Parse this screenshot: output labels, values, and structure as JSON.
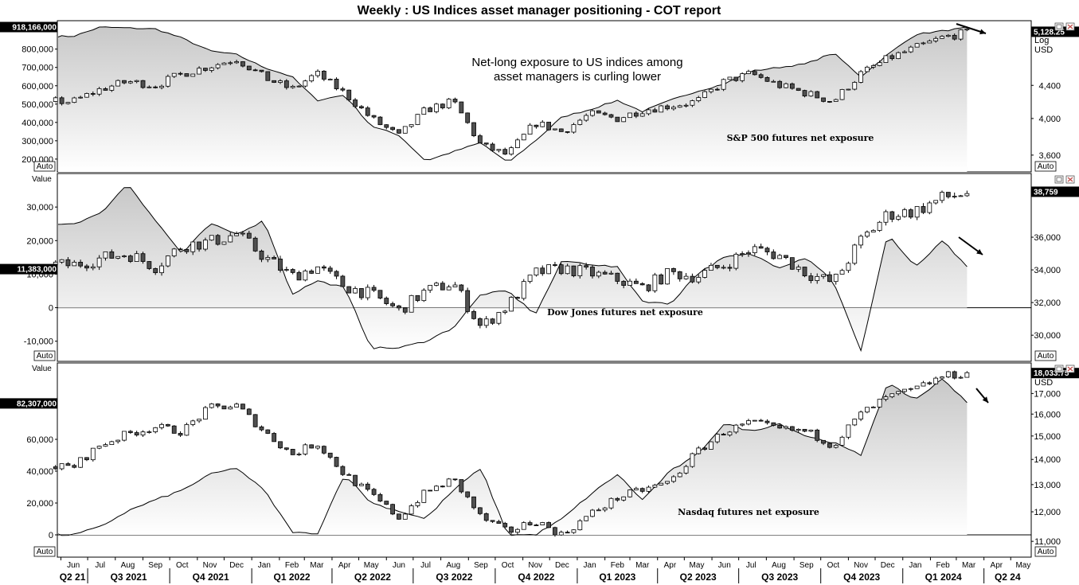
{
  "title": "Weekly : US Indices asset manager positioning - COT report",
  "annotation": "Net-long exposure to US indices among asset managers is curling lower",
  "axis_caption_left": "Value",
  "auto_label": "Auto",
  "time_axis": {
    "months": [
      "Jun",
      "Jul",
      "Aug",
      "Sep",
      "Oct",
      "Nov",
      "Dec",
      "Jan",
      "Feb",
      "Mar",
      "Apr",
      "May",
      "Jun",
      "Jul",
      "Aug",
      "Sep",
      "Oct",
      "Nov",
      "Dec",
      "Jan",
      "Feb",
      "Mar",
      "Apr",
      "May",
      "Jun",
      "Jul",
      "Aug",
      "Sep",
      "Oct",
      "Nov",
      "Dec",
      "Jan",
      "Feb",
      "Mar",
      "Apr",
      "May"
    ],
    "quarters": [
      "Q2 21",
      "Q3 2021",
      "Q4 2021",
      "Q1 2022",
      "Q2 2022",
      "Q3 2022",
      "Q4 2022",
      "Q1 2023",
      "Q2 2023",
      "Q3 2023",
      "Q4 2023",
      "Q1 2024",
      "Q2 24"
    ],
    "start": "2021-05-28",
    "end": "2024-05-24"
  },
  "colors": {
    "area_fill_top": "#c8c8c8",
    "area_fill_bottom": "#ffffff",
    "line": "#000000",
    "candle_up": "#ffffff",
    "candle_down": "#505050",
    "badge": "#000000",
    "close_icon": "#c0504d"
  },
  "chart_data": [
    {
      "type": "line+candlestick",
      "title": "",
      "panel_label": "S&P 500 futures net exposure",
      "left_axis": {
        "label": "Value",
        "ticks": [
          "200,000",
          "300,000",
          "400,000",
          "500,000",
          "600,000",
          "700,000",
          "800,000"
        ],
        "tick_values": [
          200000,
          300000,
          400000,
          500000,
          600000,
          700000,
          800000
        ],
        "last_value": "918,166,000"
      },
      "right_axis": {
        "scale": "log",
        "labels": [
          "Log",
          "USD"
        ],
        "ticks": [
          "3,600",
          "4,000",
          "4,400"
        ],
        "tick_values": [
          3600,
          4000,
          4400
        ],
        "last_value": "5,128.25"
      },
      "series": [
        {
          "role": "net_exposure_line",
          "x": [
            "2021-06",
            "2021-07",
            "2021-08",
            "2021-09",
            "2021-10",
            "2021-11",
            "2021-12",
            "2022-01",
            "2022-02",
            "2022-03",
            "2022-04",
            "2022-05",
            "2022-06",
            "2022-07",
            "2022-08",
            "2022-09",
            "2022-10",
            "2022-11",
            "2022-12",
            "2023-01",
            "2023-02",
            "2023-03",
            "2023-04",
            "2023-05",
            "2023-06",
            "2023-07",
            "2023-08",
            "2023-09",
            "2023-10",
            "2023-11",
            "2023-12",
            "2024-01",
            "2024-02",
            "2024-03"
          ],
          "values": [
            870000,
            920000,
            915000,
            910000,
            860000,
            790000,
            770000,
            700000,
            650000,
            520000,
            550000,
            380000,
            330000,
            190000,
            240000,
            290000,
            180000,
            300000,
            430000,
            470000,
            520000,
            460000,
            520000,
            570000,
            610000,
            680000,
            700000,
            720000,
            780000,
            650000,
            770000,
            880000,
            900000,
            918166
          ]
        },
        {
          "role": "price_close",
          "x": [
            "2021-06",
            "2021-07",
            "2021-08",
            "2021-09",
            "2021-10",
            "2021-11",
            "2021-12",
            "2022-01",
            "2022-02",
            "2022-03",
            "2022-04",
            "2022-05",
            "2022-06",
            "2022-07",
            "2022-08",
            "2022-09",
            "2022-10",
            "2022-11",
            "2022-12",
            "2023-01",
            "2023-02",
            "2023-03",
            "2023-04",
            "2023-05",
            "2023-06",
            "2023-07",
            "2023-08",
            "2023-09",
            "2023-10",
            "2023-11",
            "2023-12",
            "2024-01",
            "2024-02",
            "2024-03"
          ],
          "values": [
            4200,
            4350,
            4450,
            4400,
            4550,
            4650,
            4750,
            4500,
            4350,
            4550,
            4300,
            4000,
            3800,
            4100,
            4200,
            3700,
            3600,
            3950,
            3850,
            4050,
            4000,
            4100,
            4150,
            4200,
            4450,
            4550,
            4400,
            4300,
            4200,
            4550,
            4750,
            4900,
            5050,
            5128
          ]
        }
      ]
    },
    {
      "type": "line+candlestick",
      "title": "",
      "panel_label": "Dow Jones futures net exposure",
      "left_axis": {
        "label": "Value",
        "ticks": [
          "-10,000",
          "0",
          "10,000",
          "20,000",
          "30,000"
        ],
        "tick_values": [
          -10000,
          0,
          10000,
          20000,
          30000
        ],
        "last_value": "11,383,000"
      },
      "right_axis": {
        "scale": "linear",
        "labels": [
          "USD"
        ],
        "ticks": [
          "30,000",
          "32,000",
          "34,000",
          "36,000"
        ],
        "tick_values": [
          30000,
          32000,
          34000,
          36000
        ],
        "last_value": "38,759"
      },
      "series": [
        {
          "role": "net_exposure_line",
          "x": [
            "2021-06",
            "2021-07",
            "2021-08",
            "2021-09",
            "2021-10",
            "2021-11",
            "2021-12",
            "2022-01",
            "2022-02",
            "2022-03",
            "2022-04",
            "2022-05",
            "2022-06",
            "2022-07",
            "2022-08",
            "2022-09",
            "2022-10",
            "2022-11",
            "2022-12",
            "2023-01",
            "2023-02",
            "2023-03",
            "2023-04",
            "2023-05",
            "2023-06",
            "2023-07",
            "2023-08",
            "2023-09",
            "2023-10",
            "2023-11",
            "2023-12",
            "2024-01",
            "2024-02",
            "2024-03"
          ],
          "values": [
            25000,
            28000,
            37000,
            26000,
            16000,
            25000,
            22000,
            26000,
            4000,
            8000,
            6000,
            -12000,
            -12000,
            -10000,
            -6000,
            4000,
            5000,
            -2000,
            14000,
            13000,
            12000,
            2000,
            1000,
            10000,
            15000,
            16000,
            12000,
            15000,
            8000,
            -13000,
            22000,
            12000,
            20000,
            11383
          ]
        },
        {
          "role": "price_close",
          "x": [
            "2021-06",
            "2021-07",
            "2021-08",
            "2021-09",
            "2021-10",
            "2021-11",
            "2021-12",
            "2022-01",
            "2022-02",
            "2022-03",
            "2022-04",
            "2022-05",
            "2022-06",
            "2022-07",
            "2022-08",
            "2022-09",
            "2022-10",
            "2022-11",
            "2022-12",
            "2023-01",
            "2023-02",
            "2023-03",
            "2023-04",
            "2023-05",
            "2023-06",
            "2023-07",
            "2023-08",
            "2023-09",
            "2023-10",
            "2023-11",
            "2023-12",
            "2024-01",
            "2024-02",
            "2024-03"
          ],
          "values": [
            34300,
            34700,
            35000,
            34200,
            35500,
            35700,
            36200,
            34800,
            33600,
            34200,
            33000,
            32500,
            31500,
            32700,
            33200,
            30500,
            31800,
            33800,
            34100,
            33800,
            33400,
            32900,
            33800,
            33600,
            34300,
            35300,
            34900,
            33800,
            33200,
            35800,
            37400,
            37600,
            38400,
            38759
          ]
        }
      ]
    },
    {
      "type": "line+candlestick",
      "title": "",
      "panel_label": "Nasdaq futures net exposure",
      "left_axis": {
        "label": "Value",
        "ticks": [
          "0",
          "20,000",
          "40,000",
          "60,000"
        ],
        "tick_values": [
          0,
          20000,
          40000,
          60000
        ],
        "last_value": "82,307,000"
      },
      "right_axis": {
        "scale": "log",
        "labels": [
          "USD"
        ],
        "ticks": [
          "11,000",
          "12,000",
          "13,000",
          "14,000",
          "15,000",
          "16,000",
          "17,000"
        ],
        "tick_values": [
          11000,
          12000,
          13000,
          14000,
          15000,
          16000,
          17000
        ],
        "last_value": "18,033.75"
      },
      "series": [
        {
          "role": "net_exposure_line",
          "x": [
            "2021-06",
            "2021-07",
            "2021-08",
            "2021-09",
            "2021-10",
            "2021-11",
            "2021-12",
            "2022-01",
            "2022-02",
            "2022-03",
            "2022-04",
            "2022-05",
            "2022-06",
            "2022-07",
            "2022-08",
            "2022-09",
            "2022-10",
            "2022-11",
            "2022-12",
            "2023-01",
            "2023-02",
            "2023-03",
            "2023-04",
            "2023-05",
            "2023-06",
            "2023-07",
            "2023-08",
            "2023-09",
            "2023-10",
            "2023-11",
            "2023-12",
            "2024-01",
            "2024-02",
            "2024-03"
          ],
          "values": [
            0,
            5000,
            15000,
            22000,
            28000,
            38000,
            42000,
            28000,
            2000,
            0,
            38000,
            20000,
            15000,
            10000,
            28000,
            42000,
            0,
            0,
            10000,
            25000,
            38000,
            22000,
            40000,
            50000,
            70000,
            65000,
            70000,
            62000,
            58000,
            50000,
            95000,
            85000,
            98000,
            82307
          ]
        },
        {
          "role": "price_close",
          "x": [
            "2021-06",
            "2021-07",
            "2021-08",
            "2021-09",
            "2021-10",
            "2021-11",
            "2021-12",
            "2022-01",
            "2022-02",
            "2022-03",
            "2022-04",
            "2022-05",
            "2022-06",
            "2022-07",
            "2022-08",
            "2022-09",
            "2022-10",
            "2022-11",
            "2022-12",
            "2023-01",
            "2023-02",
            "2023-03",
            "2023-04",
            "2023-05",
            "2023-06",
            "2023-07",
            "2023-08",
            "2023-09",
            "2023-10",
            "2023-11",
            "2023-12",
            "2024-01",
            "2024-02",
            "2024-03"
          ],
          "values": [
            13700,
            14600,
            15100,
            15400,
            15200,
            16300,
            16400,
            15200,
            14200,
            14700,
            13400,
            12600,
            11800,
            12700,
            13200,
            11800,
            11300,
            11700,
            11200,
            11900,
            12500,
            12800,
            13100,
            14300,
            15200,
            15600,
            15300,
            15200,
            14600,
            16000,
            16800,
            17200,
            17900,
            18033
          ]
        }
      ]
    }
  ]
}
